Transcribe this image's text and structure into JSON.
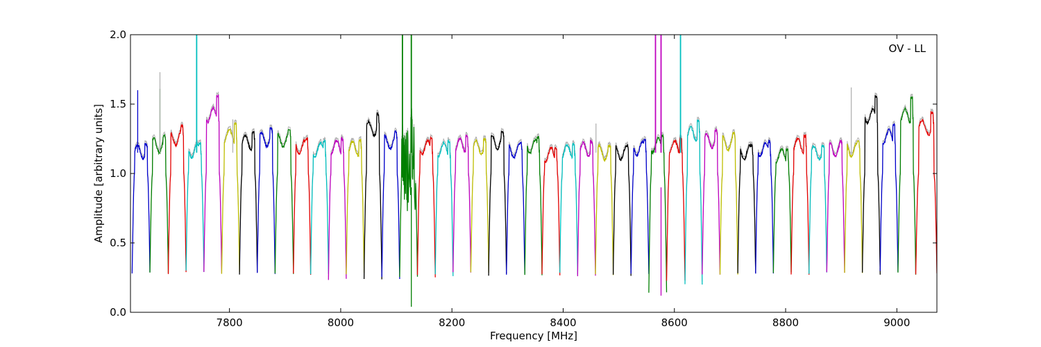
{
  "chart_data": {
    "type": "line",
    "annotation": "OV - LL",
    "xlabel": "Frequency [MHz]",
    "ylabel": "Amplitude [arbitrary units]",
    "xlim": [
      7622,
      9072
    ],
    "ylim": [
      0.0,
      2.0
    ],
    "x_ticks": [
      7800,
      8000,
      8200,
      8400,
      8600,
      8800,
      9000
    ],
    "y_ticks": [
      0.0,
      0.5,
      1.0,
      1.5,
      2.0
    ],
    "x_tick_labels": [
      "7800",
      "8000",
      "8200",
      "8400",
      "8600",
      "8800",
      "9000"
    ],
    "y_tick_labels": [
      "0.0",
      "0.5",
      "1.0",
      "1.5",
      "2.0"
    ],
    "grid": false,
    "channel_colors": [
      "#0000cc",
      "#007f00",
      "#e50000",
      "#00bfbf",
      "#bf00bf",
      "#bfbf00",
      "#000000"
    ],
    "background_trace_color": "#b3b3b3",
    "band_edges_mhz": [
      7625,
      7657,
      7690,
      7722,
      7754,
      7786,
      7818,
      7850,
      7882,
      7915,
      7946,
      7978,
      8010,
      8042,
      8074,
      8106,
      8138,
      8170,
      8202,
      8234,
      8266,
      8298,
      8331,
      8362,
      8394,
      8426,
      8458,
      8490,
      8522,
      8554,
      8586,
      8619,
      8650,
      8682,
      8714,
      8746,
      8778,
      8810,
      8842,
      8874,
      8906,
      8938,
      8970,
      9002,
      9034,
      9072
    ],
    "band_peaks": [
      1.21,
      1.27,
      1.34,
      1.22,
      1.56,
      1.36,
      1.3,
      1.33,
      1.32,
      1.25,
      1.23,
      1.25,
      1.24,
      1.43,
      1.3,
      1.15,
      1.25,
      1.23,
      1.27,
      1.25,
      1.3,
      1.22,
      1.26,
      1.18,
      1.21,
      1.23,
      1.2,
      1.2,
      1.24,
      1.27,
      1.25,
      1.38,
      1.31,
      1.29,
      1.2,
      1.23,
      1.17,
      1.27,
      1.2,
      1.23,
      1.23,
      1.55,
      1.35,
      1.55,
      1.44,
      1.36
    ],
    "band_minima": [
      0.28,
      0.29,
      0.28,
      0.3,
      0.29,
      0.28,
      0.28,
      0.28,
      0.28,
      0.28,
      0.28,
      0.24,
      0.28,
      0.24,
      0.25,
      0.25,
      0.26,
      0.27,
      0.29,
      0.28,
      0.27,
      0.27,
      0.27,
      0.27,
      0.28,
      0.27,
      0.27,
      0.27,
      0.27,
      0.14,
      0.23,
      0.2,
      0.27,
      0.27,
      0.28,
      0.28,
      0.28,
      0.28,
      0.28,
      0.28,
      0.28,
      0.28,
      0.29,
      0.28,
      0.28,
      0.3
    ],
    "spikes": [
      {
        "x": 7635,
        "y": 1.6,
        "series": 0
      },
      {
        "x": 7675,
        "y": 1.61,
        "series": 1
      },
      {
        "x": 7675,
        "y": 1.73,
        "series": "background"
      },
      {
        "x": 7741,
        "y": 2.0,
        "series": 3
      },
      {
        "x": 7806,
        "y": 1.39,
        "series": "background"
      },
      {
        "x": 8111,
        "y": 2.0,
        "series": 1
      },
      {
        "x": 8127,
        "y": 2.0,
        "series": 1
      },
      {
        "x": 8127,
        "y": 0.04,
        "series": 1
      },
      {
        "x": 8459,
        "y": 1.36,
        "series": "background"
      },
      {
        "x": 8566,
        "y": 2.0,
        "series": 4
      },
      {
        "x": 8576,
        "y": 2.0,
        "series": 4
      },
      {
        "x": 8576,
        "y": 0.12,
        "series": 4
      },
      {
        "x": 8611,
        "y": 2.0,
        "series": 3
      },
      {
        "x": 8918,
        "y": 1.62,
        "series": "background"
      }
    ],
    "rfi_regions": [
      {
        "x_start": 8106,
        "x_end": 8138,
        "series": 1
      },
      {
        "x_start": 8554,
        "x_end": 8586,
        "series": 4
      },
      {
        "x_start": 8610,
        "x_end": 8632,
        "series": 3
      }
    ]
  }
}
